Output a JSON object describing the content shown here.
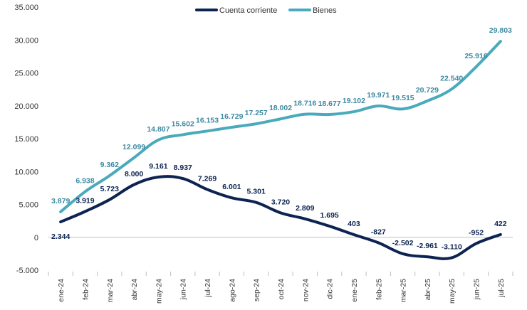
{
  "chart_data": {
    "type": "line",
    "categories": [
      "ene-24",
      "feb-24",
      "mar-24",
      "abr-24",
      "may-24",
      "jun-24",
      "jul-24",
      "ago-24",
      "sep-24",
      "oct-24",
      "nov-24",
      "dic-24",
      "ene-25",
      "feb-25",
      "mar-25",
      "abr-25",
      "may-25",
      "jun-25",
      "jul-25"
    ],
    "series": [
      {
        "name": "Cuenta corriente",
        "color": "#0d2352",
        "values": [
          2344,
          3919,
          5723,
          8000,
          9161,
          8937,
          7269,
          6001,
          5301,
          3720,
          2809,
          1695,
          403,
          -827,
          -2502,
          -2961,
          -3110,
          -952,
          422
        ],
        "labels": [
          "2.344",
          "3.919",
          "5.723",
          "8.000",
          "9.161",
          "8.937",
          "7.269",
          "6.001",
          "5.301",
          "3.720",
          "2.809",
          "1.695",
          "403",
          "-827",
          "-2.502",
          "-2.961",
          "-3.110",
          "-952",
          "422"
        ]
      },
      {
        "name": "Bienes",
        "color": "#4aaabb",
        "label_color": "#3c8aa2",
        "values": [
          3879,
          6938,
          9362,
          12099,
          14807,
          15602,
          16153,
          16729,
          17257,
          18002,
          18716,
          18677,
          19102,
          19971,
          19515,
          20729,
          22540,
          25916,
          29803
        ],
        "labels": [
          "3.879",
          "6.938",
          "9.362",
          "12.099",
          "14.807",
          "15.602",
          "16.153",
          "16.729",
          "17.257",
          "18.002",
          "18.716",
          "18.677",
          "19.102",
          "19.971",
          "19.515",
          "20.729",
          "22.540",
          "25.916",
          "29.803"
        ]
      }
    ],
    "yticks": [
      35000,
      30000,
      25000,
      20000,
      15000,
      10000,
      5000,
      0,
      -5000
    ],
    "ytick_labels": [
      "35.000",
      "30.000",
      "25.000",
      "20.000",
      "15.000",
      "10.000",
      "5.000",
      "0",
      "-5.000"
    ],
    "ylim": [
      -5000,
      35000
    ],
    "legend_position": "top-center",
    "grid": false,
    "title": "",
    "xlabel": "",
    "ylabel": ""
  }
}
